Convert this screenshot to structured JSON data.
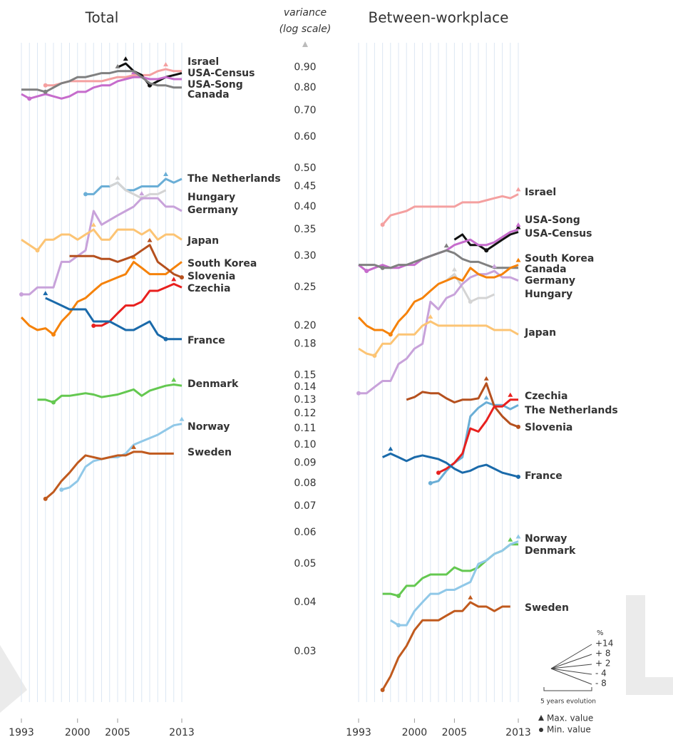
{
  "chart_data": [
    {
      "type": "line",
      "title": "Total",
      "log_scale": true,
      "grid": true,
      "x": [
        1993,
        1994,
        1995,
        1996,
        1997,
        1998,
        1999,
        2000,
        2001,
        2002,
        2003,
        2004,
        2005,
        2006,
        2007,
        2008,
        2009,
        2010,
        2011,
        2012,
        2013
      ],
      "xlim": [
        1993,
        2013
      ],
      "xticks": [
        1993,
        2000,
        2005,
        2013
      ],
      "ylim": [
        0.022,
        1.0
      ],
      "yticks": [
        {
          "value": 0.9,
          "label": "0.90"
        },
        {
          "value": 0.8,
          "label": "0.80"
        },
        {
          "value": 0.7,
          "label": "0.70"
        },
        {
          "value": 0.6,
          "label": "0.60"
        },
        {
          "value": 0.5,
          "label": "0.50"
        },
        {
          "value": 0.45,
          "label": "0.45"
        },
        {
          "value": 0.4,
          "label": "0.40"
        },
        {
          "value": 0.35,
          "label": "0.35"
        },
        {
          "value": 0.3,
          "label": "0.30"
        },
        {
          "value": 0.25,
          "label": "0.25"
        },
        {
          "value": 0.2,
          "label": "0.20"
        },
        {
          "value": 0.18,
          "label": "0.18"
        },
        {
          "value": 0.15,
          "label": "0.15"
        },
        {
          "value": 0.14,
          "label": "0.14"
        },
        {
          "value": 0.13,
          "label": "0.13"
        },
        {
          "value": 0.12,
          "label": "0.12"
        },
        {
          "value": 0.11,
          "label": "0.11"
        },
        {
          "value": 0.1,
          "label": "0.10"
        },
        {
          "value": 0.09,
          "label": "0.09"
        },
        {
          "value": 0.08,
          "label": "0.08"
        },
        {
          "value": 0.07,
          "label": "0.07"
        },
        {
          "value": 0.06,
          "label": "0.06"
        },
        {
          "value": 0.05,
          "label": "0.05"
        },
        {
          "value": 0.04,
          "label": "0.04"
        },
        {
          "value": 0.03,
          "label": "0.03"
        }
      ],
      "series": [
        {
          "name": "Israel",
          "color": "#f4a0a0",
          "values": [
            null,
            null,
            null,
            0.81,
            0.81,
            0.82,
            0.83,
            0.83,
            0.83,
            0.83,
            0.83,
            0.84,
            0.85,
            0.85,
            0.86,
            0.86,
            0.86,
            0.88,
            0.89,
            0.88,
            0.88
          ]
        },
        {
          "name": "USA-Census",
          "color": "#111111",
          "values": [
            null,
            null,
            null,
            null,
            null,
            null,
            null,
            null,
            null,
            null,
            null,
            null,
            0.9,
            0.92,
            0.88,
            0.86,
            0.81,
            0.83,
            0.85,
            0.86,
            0.87
          ]
        },
        {
          "name": "USA-Song",
          "color": "#c66ccc",
          "values": [
            0.77,
            0.75,
            0.76,
            0.77,
            0.76,
            0.75,
            0.76,
            0.78,
            0.78,
            0.8,
            0.81,
            0.81,
            0.83,
            0.84,
            0.85,
            0.85,
            0.84,
            0.84,
            0.85,
            0.84,
            0.84
          ]
        },
        {
          "name": "Canada",
          "color": "#808080",
          "values": [
            0.79,
            0.79,
            0.79,
            0.78,
            0.8,
            0.82,
            0.83,
            0.85,
            0.85,
            0.86,
            0.87,
            0.87,
            0.88,
            0.88,
            0.88,
            0.85,
            0.82,
            0.81,
            0.81,
            0.8,
            0.8
          ]
        },
        {
          "name": "The Netherlands",
          "color": "#6aaed6",
          "values": [
            null,
            null,
            null,
            null,
            null,
            null,
            null,
            null,
            0.43,
            0.43,
            0.45,
            0.45,
            0.46,
            0.44,
            0.44,
            0.45,
            0.45,
            0.45,
            0.47,
            0.46,
            0.47
          ]
        },
        {
          "name": "Hungary",
          "color": "#d4d4d4",
          "values": [
            null,
            null,
            null,
            null,
            null,
            null,
            null,
            null,
            null,
            null,
            null,
            0.45,
            0.46,
            0.44,
            0.43,
            0.42,
            0.43,
            0.43,
            0.44,
            null,
            null
          ]
        },
        {
          "name": "Germany",
          "color": "#c8a2da",
          "values": [
            0.24,
            0.24,
            0.25,
            0.25,
            0.25,
            0.29,
            0.29,
            0.3,
            0.31,
            0.39,
            0.36,
            0.37,
            0.38,
            0.39,
            0.4,
            0.42,
            0.42,
            0.42,
            0.4,
            0.4,
            0.39
          ]
        },
        {
          "name": "Japan",
          "color": "#fcc474",
          "values": [
            0.33,
            0.32,
            0.31,
            0.33,
            0.33,
            0.34,
            0.34,
            0.33,
            0.34,
            0.35,
            0.33,
            0.33,
            0.35,
            0.35,
            0.35,
            0.34,
            0.35,
            0.33,
            0.34,
            0.34,
            0.33
          ]
        },
        {
          "name": "South Korea",
          "color": "#f5820a",
          "values": [
            0.21,
            0.2,
            0.195,
            0.197,
            0.19,
            0.205,
            0.215,
            0.23,
            0.235,
            0.245,
            0.255,
            0.26,
            0.265,
            0.27,
            0.29,
            0.28,
            0.27,
            0.27,
            0.27,
            0.28,
            0.29
          ]
        },
        {
          "name": "Slovenia",
          "color": "#b5501e",
          "values": [
            null,
            null,
            null,
            null,
            null,
            null,
            0.3,
            0.3,
            0.3,
            0.3,
            0.295,
            0.295,
            0.29,
            0.295,
            0.3,
            0.31,
            0.32,
            0.29,
            0.28,
            0.27,
            0.265
          ]
        },
        {
          "name": "Czechia",
          "color": "#e8201e",
          "values": [
            null,
            null,
            null,
            null,
            null,
            null,
            null,
            null,
            null,
            0.2,
            0.2,
            0.205,
            0.215,
            0.225,
            0.225,
            0.23,
            0.245,
            0.245,
            0.25,
            0.255,
            0.25
          ]
        },
        {
          "name": "France",
          "color": "#1a6aaa",
          "values": [
            null,
            null,
            null,
            0.235,
            0.23,
            0.225,
            0.22,
            0.22,
            0.22,
            0.205,
            0.205,
            0.205,
            0.2,
            0.195,
            0.195,
            0.2,
            0.205,
            0.19,
            0.185,
            0.185,
            0.185
          ]
        },
        {
          "name": "Denmark",
          "color": "#64c850",
          "values": [
            null,
            null,
            0.13,
            0.13,
            0.128,
            0.133,
            0.133,
            0.134,
            0.135,
            0.134,
            0.132,
            0.133,
            0.134,
            0.136,
            0.138,
            0.133,
            0.137,
            0.139,
            0.141,
            0.142,
            0.141
          ]
        },
        {
          "name": "Norway",
          "color": "#90c8e8",
          "values": [
            null,
            null,
            null,
            null,
            null,
            0.077,
            0.078,
            0.081,
            0.088,
            0.091,
            0.092,
            0.093,
            0.093,
            0.095,
            0.1,
            0.102,
            0.104,
            0.106,
            0.109,
            0.112,
            0.113
          ]
        },
        {
          "name": "Sweden",
          "color": "#c05a1e",
          "values": [
            null,
            null,
            null,
            0.073,
            0.076,
            0.081,
            0.085,
            0.09,
            0.094,
            0.093,
            0.092,
            0.093,
            0.094,
            0.094,
            0.096,
            0.096,
            0.095,
            0.095,
            0.095,
            0.095,
            null
          ]
        }
      ]
    },
    {
      "type": "line",
      "title": "Between-workplace",
      "log_scale": true,
      "grid": true,
      "x": [
        1993,
        1994,
        1995,
        1996,
        1997,
        1998,
        1999,
        2000,
        2001,
        2002,
        2003,
        2004,
        2005,
        2006,
        2007,
        2008,
        2009,
        2010,
        2011,
        2012,
        2013
      ],
      "xlim": [
        1993,
        2013
      ],
      "xticks": [
        1993,
        2000,
        2005,
        2013
      ],
      "ylim": [
        0.022,
        1.0
      ],
      "series": [
        {
          "name": "Israel",
          "color": "#f4a0a0",
          "values": [
            null,
            null,
            null,
            0.36,
            0.38,
            0.385,
            0.39,
            0.4,
            0.4,
            0.4,
            0.4,
            0.4,
            0.4,
            0.41,
            0.41,
            0.41,
            0.415,
            0.42,
            0.425,
            0.42,
            0.43
          ]
        },
        {
          "name": "USA-Census",
          "color": "#111111",
          "values": [
            null,
            null,
            null,
            null,
            null,
            null,
            null,
            null,
            null,
            null,
            null,
            null,
            0.33,
            0.34,
            0.32,
            0.32,
            0.31,
            0.32,
            0.33,
            0.34,
            0.345
          ]
        },
        {
          "name": "USA-Song",
          "color": "#c66ccc",
          "values": [
            0.285,
            0.275,
            0.28,
            0.285,
            0.28,
            0.28,
            0.285,
            0.285,
            0.295,
            0.3,
            0.305,
            0.31,
            0.32,
            0.325,
            0.33,
            0.32,
            0.32,
            0.325,
            0.335,
            0.345,
            0.35
          ]
        },
        {
          "name": "Canada",
          "color": "#808080",
          "values": [
            0.285,
            0.285,
            0.285,
            0.28,
            0.28,
            0.285,
            0.285,
            0.29,
            0.295,
            0.3,
            0.305,
            0.31,
            0.305,
            0.295,
            0.29,
            0.29,
            0.285,
            0.28,
            0.28,
            0.28,
            0.28
          ]
        },
        {
          "name": "The Netherlands",
          "color": "#6aaed6",
          "values": [
            null,
            null,
            null,
            null,
            null,
            null,
            null,
            null,
            null,
            0.08,
            0.081,
            0.086,
            0.09,
            0.093,
            0.118,
            0.124,
            0.128,
            0.126,
            0.126,
            0.123,
            0.126
          ]
        },
        {
          "name": "Hungary",
          "color": "#d4d4d4",
          "values": [
            null,
            null,
            null,
            null,
            null,
            null,
            null,
            null,
            null,
            null,
            null,
            0.26,
            0.27,
            0.25,
            0.23,
            0.235,
            0.235,
            0.24,
            null,
            null,
            null
          ]
        },
        {
          "name": "Germany",
          "color": "#c8a2da",
          "values": [
            0.135,
            0.135,
            0.14,
            0.145,
            0.145,
            0.16,
            0.165,
            0.175,
            0.18,
            0.23,
            0.22,
            0.235,
            0.24,
            0.255,
            0.265,
            0.27,
            0.27,
            0.275,
            0.265,
            0.265,
            0.26
          ]
        },
        {
          "name": "Japan",
          "color": "#fcc474",
          "values": [
            0.175,
            0.17,
            0.168,
            0.18,
            0.18,
            0.19,
            0.19,
            0.19,
            0.2,
            0.205,
            0.2,
            0.2,
            0.2,
            0.2,
            0.2,
            0.2,
            0.2,
            0.195,
            0.195,
            0.195,
            0.19
          ]
        },
        {
          "name": "South Korea",
          "color": "#f5820a",
          "values": [
            0.21,
            0.2,
            0.195,
            0.195,
            0.19,
            0.205,
            0.215,
            0.23,
            0.235,
            0.245,
            0.255,
            0.26,
            0.265,
            0.26,
            0.28,
            0.27,
            0.265,
            0.265,
            0.27,
            0.28,
            0.285
          ]
        },
        {
          "name": "Slovenia",
          "color": "#b5501e",
          "values": [
            null,
            null,
            null,
            null,
            null,
            null,
            0.13,
            0.132,
            0.136,
            0.135,
            0.135,
            0.131,
            0.128,
            0.13,
            0.13,
            0.131,
            0.143,
            0.125,
            0.118,
            0.113,
            0.111
          ]
        },
        {
          "name": "Czechia",
          "color": "#e8201e",
          "values": [
            null,
            null,
            null,
            null,
            null,
            null,
            null,
            null,
            null,
            null,
            0.085,
            0.087,
            0.09,
            0.095,
            0.11,
            0.108,
            0.115,
            0.125,
            0.125,
            0.13,
            0.13
          ]
        },
        {
          "name": "France",
          "color": "#1a6aaa",
          "values": [
            null,
            null,
            null,
            0.093,
            0.095,
            0.093,
            0.091,
            0.093,
            0.094,
            0.093,
            0.092,
            0.09,
            0.087,
            0.085,
            0.086,
            0.088,
            0.089,
            0.087,
            0.085,
            0.084,
            0.083
          ]
        },
        {
          "name": "Denmark",
          "color": "#64c850",
          "values": [
            null,
            null,
            null,
            0.042,
            0.042,
            0.0415,
            0.044,
            0.044,
            0.046,
            0.047,
            0.047,
            0.047,
            0.049,
            0.048,
            0.048,
            0.049,
            0.051,
            0.053,
            0.054,
            0.056,
            0.056
          ]
        },
        {
          "name": "Norway",
          "color": "#90c8e8",
          "values": [
            null,
            null,
            null,
            null,
            0.036,
            0.035,
            0.035,
            0.038,
            0.04,
            0.042,
            0.042,
            0.043,
            0.043,
            0.044,
            0.045,
            0.05,
            0.051,
            0.053,
            0.054,
            0.056,
            0.057
          ]
        },
        {
          "name": "Sweden",
          "color": "#c05a1e",
          "values": [
            null,
            null,
            null,
            0.024,
            0.026,
            0.029,
            0.031,
            0.034,
            0.036,
            0.036,
            0.036,
            0.037,
            0.038,
            0.038,
            0.04,
            0.039,
            0.039,
            0.038,
            0.039,
            0.039,
            null
          ]
        }
      ]
    }
  ],
  "axis": {
    "title": "variance",
    "subtitle": "(log scale)"
  },
  "legend": {
    "unit": "%",
    "evolution_labels": [
      "+14",
      "+ 8",
      "+ 2",
      "- 4",
      "- 8"
    ],
    "caption": "5 years evolution",
    "max_label": "Max. value",
    "min_label": "Min. value"
  }
}
